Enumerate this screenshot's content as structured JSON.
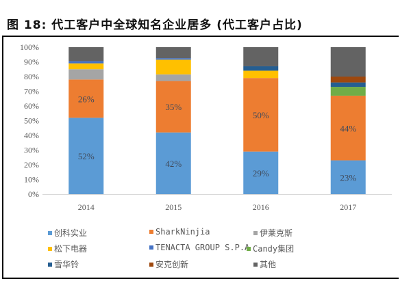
{
  "figure": {
    "title": "图 18: 代工客户中全球知名企业居多 (代工客户占比)"
  },
  "chart_data": {
    "type": "bar",
    "stacked": true,
    "title": "图 18: 代工客户中全球知名企业居多 (代工客户占比)",
    "xlabel": "",
    "ylabel": "",
    "categories": [
      "2014",
      "2015",
      "2016",
      "2017"
    ],
    "ylim": [
      0,
      100
    ],
    "yticks": [
      "0%",
      "10%",
      "20%",
      "30%",
      "40%",
      "50%",
      "60%",
      "70%",
      "80%",
      "90%",
      "100%"
    ],
    "legend_position": "bottom",
    "series": [
      {
        "name": "创科实业",
        "color": "#5B9BD5",
        "values": [
          52,
          42,
          29,
          23
        ],
        "labels": [
          "52%",
          "42%",
          "29%",
          "23%"
        ]
      },
      {
        "name": "SharkNinjia",
        "color": "#ED7D31",
        "values": [
          26,
          35,
          50,
          44
        ],
        "labels": [
          "26%",
          "35%",
          "50%",
          "44%"
        ]
      },
      {
        "name": "伊莱克斯",
        "color": "#A5A5A5",
        "values": [
          7,
          4.5,
          0,
          0
        ]
      },
      {
        "name": "松下电器",
        "color": "#FFC000",
        "values": [
          4,
          10,
          5,
          0
        ]
      },
      {
        "name": "TENACTA GROUP S.P.A",
        "color": "#4472C4",
        "values": [
          1.5,
          1,
          0,
          0
        ]
      },
      {
        "name": "Candy集团",
        "color": "#70AD47",
        "values": [
          0,
          0,
          0,
          6
        ]
      },
      {
        "name": "雪华铃",
        "color": "#255E91",
        "values": [
          0,
          0,
          3,
          3
        ]
      },
      {
        "name": "安克创新",
        "color": "#9E480E",
        "values": [
          0,
          0,
          0,
          4
        ]
      },
      {
        "name": "其他",
        "color": "#636363",
        "values": [
          9.5,
          7.5,
          13,
          20
        ]
      }
    ]
  }
}
